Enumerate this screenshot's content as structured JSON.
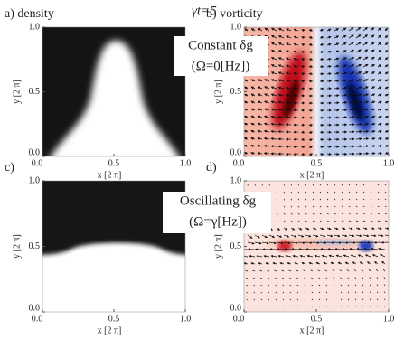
{
  "chart_data": [
    {
      "type": "field",
      "title": "a) density",
      "xlabel": "x  [2 π]",
      "ylabel": "y  [2 π]",
      "xlim": [
        0,
        1
      ],
      "ylim": [
        0,
        1
      ],
      "xticks": [
        {
          "value": 0,
          "label": "0.0"
        },
        0.5,
        {
          "value": 1,
          "label": "1.0"
        }
      ],
      "yticks": [
        {
          "value": 0,
          "label": "0.0"
        },
        0.5,
        {
          "value": 1,
          "label": "1.0"
        }
      ],
      "annotations": [
        "γt=5"
      ]
    },
    {
      "type": "field",
      "title": "b) vorticity",
      "xlabel": "x  [2 π]",
      "ylabel": "y  [2 π]",
      "xlim": [
        0,
        1
      ],
      "ylim": [
        0,
        1
      ],
      "xticks": [
        {
          "value": 0,
          "label": "0.0"
        },
        0.5,
        {
          "value": 1,
          "label": "1.0"
        }
      ],
      "yticks": [
        {
          "value": 0,
          "label": "0.0"
        },
        0.5,
        {
          "value": 1,
          "label": "1.0"
        }
      ],
      "annotations": [
        "Constant δg",
        "(Ω=0[Hz])"
      ]
    },
    {
      "type": "field",
      "title": "c)",
      "xlabel": "x  [2 π]",
      "ylabel": "y  [2 π]",
      "xlim": [
        0,
        1
      ],
      "ylim": [
        0,
        1
      ],
      "xticks": [
        {
          "value": 0,
          "label": "0.0"
        },
        0.5,
        {
          "value": 1,
          "label": "1.0"
        }
      ],
      "yticks": [
        {
          "value": 0,
          "label": "0.0"
        },
        0.5,
        {
          "value": 1,
          "label": "1.0"
        }
      ]
    },
    {
      "type": "field",
      "title": "d)",
      "xlabel": "x  [2 π]",
      "ylabel": "y  [2 π]",
      "xlim": [
        0,
        1
      ],
      "ylim": [
        0,
        1
      ],
      "xticks": [
        {
          "value": 0,
          "label": "0.0"
        },
        0.5,
        {
          "value": 1,
          "label": "1.0"
        }
      ],
      "yticks": [
        {
          "value": 0,
          "label": "0.0"
        },
        0.5,
        {
          "value": 1,
          "label": "1.0"
        }
      ],
      "annotations": [
        "Oscillating δg",
        "(Ω=γ[Hz])"
      ]
    }
  ]
}
